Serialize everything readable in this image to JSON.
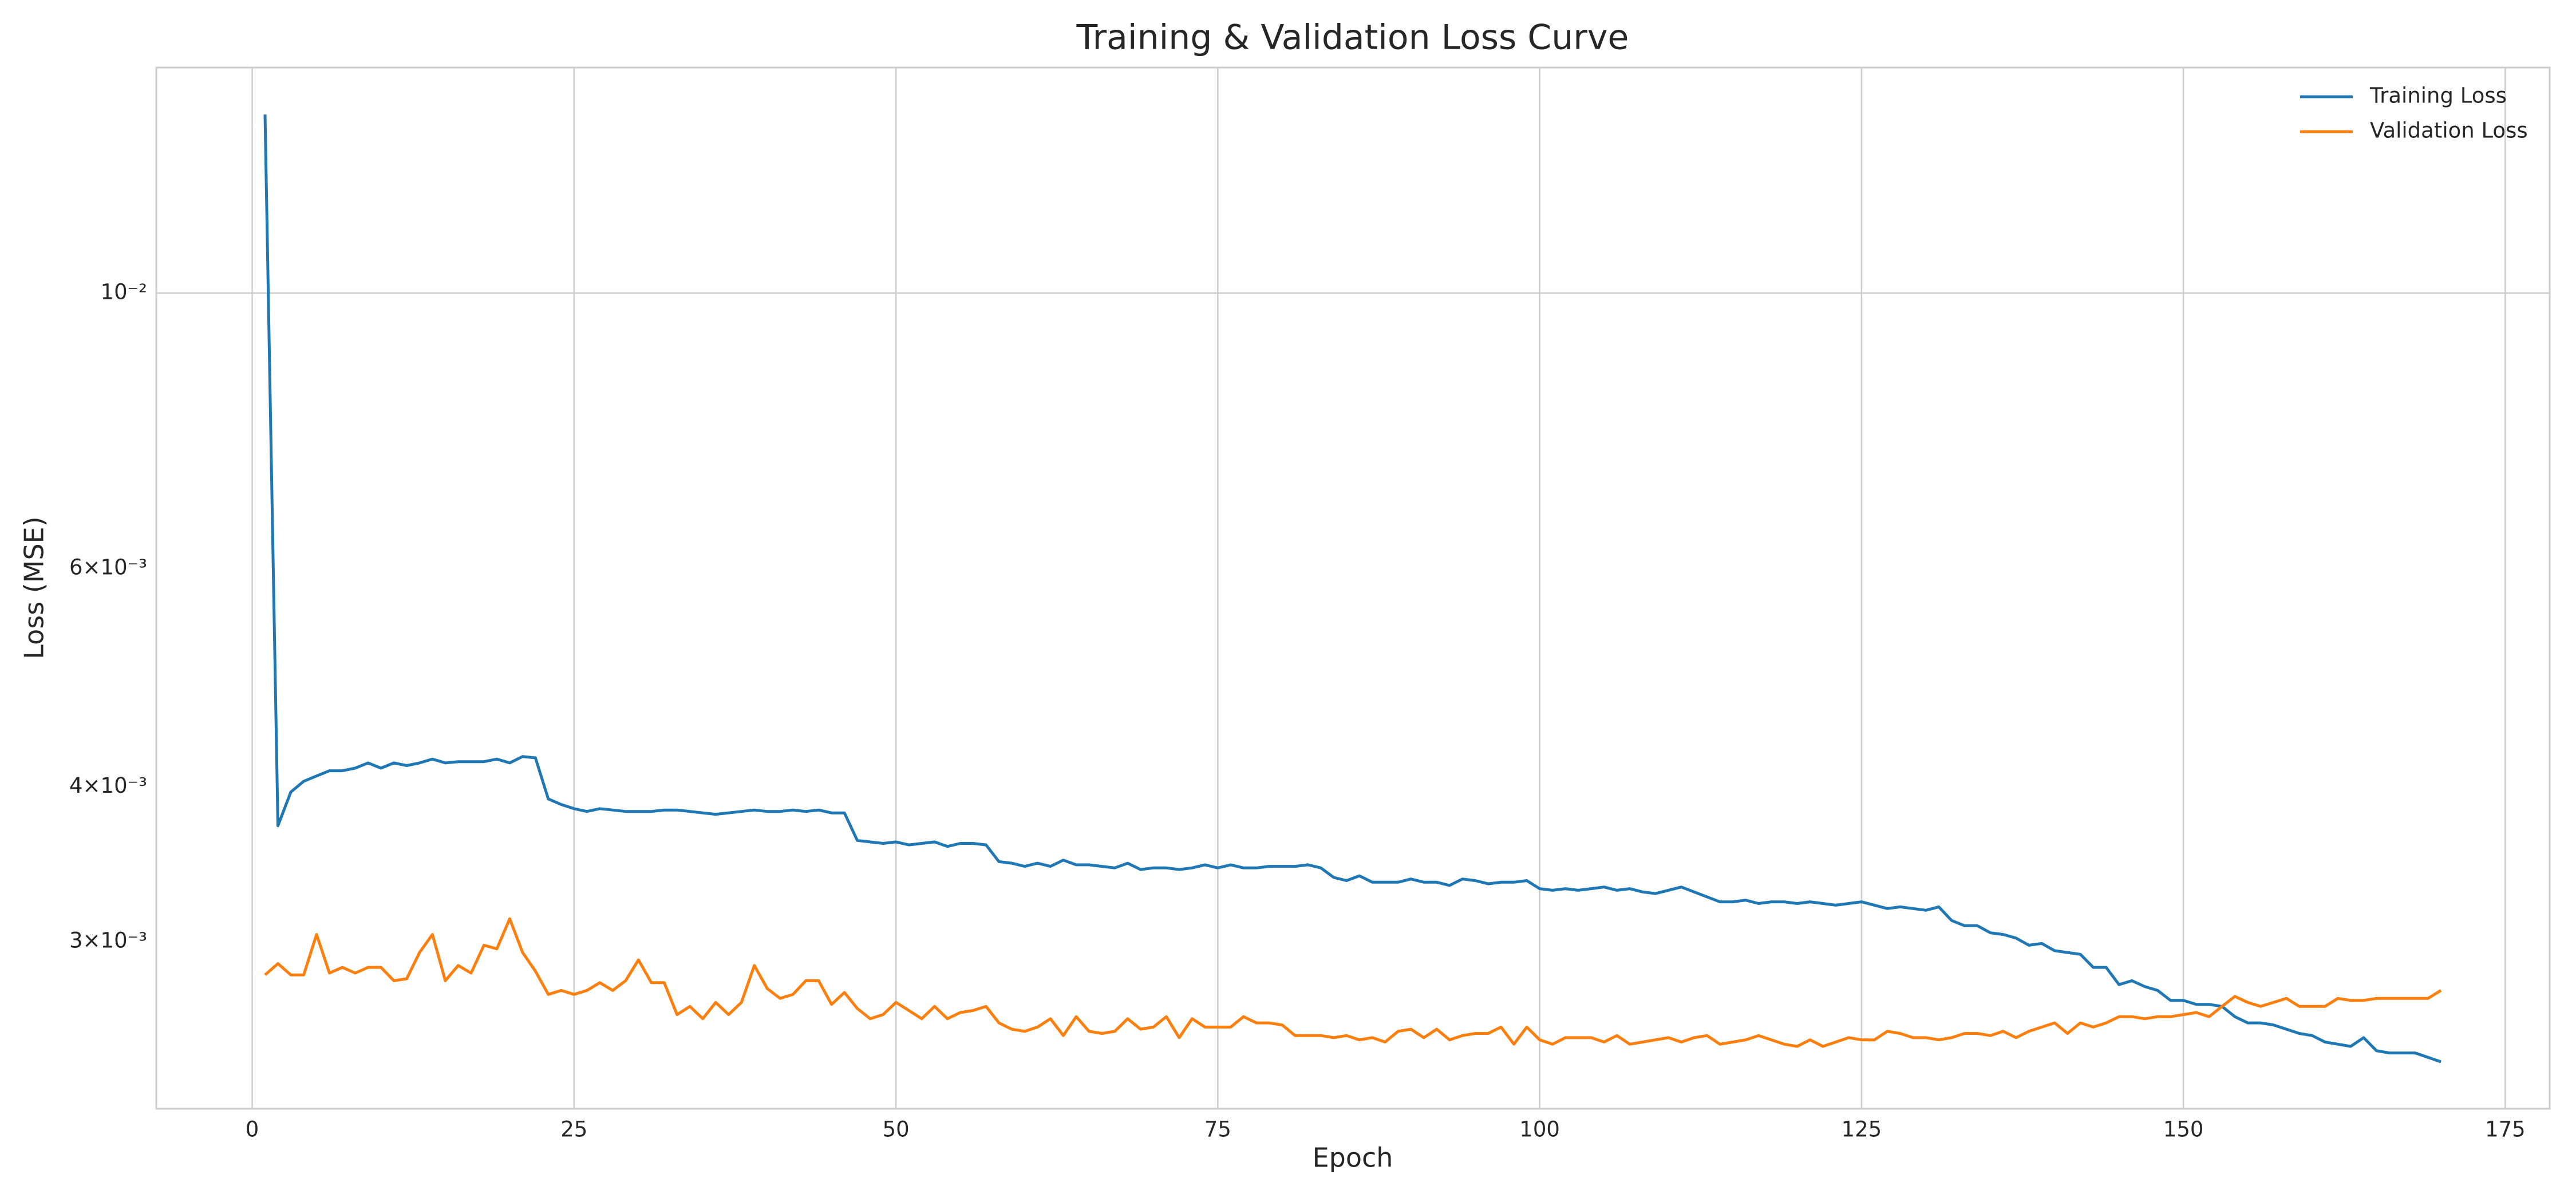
{
  "chart_data": {
    "type": "line",
    "title": "Training & Validation Loss Curve",
    "xlabel": "Epoch",
    "ylabel": "Loss (MSE)",
    "yscale": "log",
    "grid": true,
    "legend": "upper right",
    "x": [
      1,
      2,
      3,
      4,
      5,
      6,
      7,
      8,
      9,
      10,
      11,
      12,
      13,
      14,
      15,
      16,
      17,
      18,
      19,
      20,
      21,
      22,
      23,
      24,
      25,
      26,
      27,
      28,
      29,
      30,
      31,
      32,
      33,
      34,
      35,
      36,
      37,
      38,
      39,
      40,
      41,
      42,
      43,
      44,
      45,
      46,
      47,
      48,
      49,
      50,
      51,
      52,
      53,
      54,
      55,
      56,
      57,
      58,
      59,
      60,
      61,
      62,
      63,
      64,
      65,
      66,
      67,
      68,
      69,
      70,
      71,
      72,
      73,
      74,
      75,
      76,
      77,
      78,
      79,
      80,
      81,
      82,
      83,
      84,
      85,
      86,
      87,
      88,
      89,
      90,
      91,
      92,
      93,
      94,
      95,
      96,
      97,
      98,
      99,
      100,
      101,
      102,
      103,
      104,
      105,
      106,
      107,
      108,
      109,
      110,
      111,
      112,
      113,
      114,
      115,
      116,
      117,
      118,
      119,
      120,
      121,
      122,
      123,
      124,
      125,
      126,
      127,
      128,
      129,
      130,
      131,
      132,
      133,
      134,
      135,
      136,
      137,
      138,
      139,
      140,
      141,
      142,
      143,
      144,
      145,
      146,
      147,
      148,
      149,
      150,
      151,
      152,
      153,
      154,
      155,
      156,
      157,
      158,
      159,
      160,
      161,
      162,
      163,
      164,
      165,
      166,
      167,
      168,
      169,
      170
    ],
    "series": [
      {
        "name": "Training Loss",
        "color": "#1f77b4",
        "values": [
          0.01393,
          0.00372,
          0.00396,
          0.00404,
          0.00408,
          0.00412,
          0.00412,
          0.00414,
          0.00418,
          0.00414,
          0.00418,
          0.00416,
          0.00418,
          0.00421,
          0.00418,
          0.00419,
          0.00419,
          0.00419,
          0.00421,
          0.00418,
          0.00423,
          0.00422,
          0.00391,
          0.00387,
          0.00384,
          0.00382,
          0.00384,
          0.00383,
          0.00382,
          0.00382,
          0.00382,
          0.00383,
          0.00383,
          0.00382,
          0.00381,
          0.0038,
          0.00381,
          0.00382,
          0.00383,
          0.00382,
          0.00382,
          0.00383,
          0.00382,
          0.00383,
          0.00381,
          0.00381,
          0.00362,
          0.00361,
          0.0036,
          0.00361,
          0.00359,
          0.0036,
          0.00361,
          0.00358,
          0.0036,
          0.0036,
          0.00359,
          0.00348,
          0.00347,
          0.00345,
          0.00347,
          0.00345,
          0.00349,
          0.00346,
          0.00346,
          0.00345,
          0.00344,
          0.00347,
          0.00343,
          0.00344,
          0.00344,
          0.00343,
          0.00344,
          0.00346,
          0.00344,
          0.00346,
          0.00344,
          0.00344,
          0.00345,
          0.00345,
          0.00345,
          0.00346,
          0.00344,
          0.00338,
          0.00336,
          0.00339,
          0.00335,
          0.00335,
          0.00335,
          0.00337,
          0.00335,
          0.00335,
          0.00333,
          0.00337,
          0.00336,
          0.00334,
          0.00335,
          0.00335,
          0.00336,
          0.00331,
          0.0033,
          0.00331,
          0.0033,
          0.00331,
          0.00332,
          0.0033,
          0.00331,
          0.00329,
          0.00328,
          0.0033,
          0.00332,
          0.00329,
          0.00326,
          0.00323,
          0.00323,
          0.00324,
          0.00322,
          0.00323,
          0.00323,
          0.00322,
          0.00323,
          0.00322,
          0.00321,
          0.00322,
          0.00323,
          0.00321,
          0.00319,
          0.0032,
          0.00319,
          0.00318,
          0.0032,
          0.00312,
          0.00309,
          0.00309,
          0.00305,
          0.00304,
          0.00302,
          0.00298,
          0.00299,
          0.00295,
          0.00294,
          0.00293,
          0.00286,
          0.00286,
          0.00277,
          0.00279,
          0.00276,
          0.00274,
          0.00269,
          0.00269,
          0.00267,
          0.00267,
          0.00266,
          0.00261,
          0.00258,
          0.00258,
          0.00257,
          0.00255,
          0.00253,
          0.00252,
          0.00249,
          0.00248,
          0.00247,
          0.00251,
          0.00245,
          0.00244,
          0.00244,
          0.00244,
          0.00242,
          0.0024
        ]
      },
      {
        "name": "Validation Loss",
        "color": "#ff7f0e",
        "values": [
          0.00282,
          0.00288,
          0.00282,
          0.00282,
          0.00304,
          0.00283,
          0.00286,
          0.00283,
          0.00286,
          0.00286,
          0.00279,
          0.0028,
          0.00294,
          0.00304,
          0.00279,
          0.00287,
          0.00283,
          0.00298,
          0.00296,
          0.00313,
          0.00294,
          0.00284,
          0.00272,
          0.00274,
          0.00272,
          0.00274,
          0.00278,
          0.00274,
          0.00279,
          0.0029,
          0.00278,
          0.00278,
          0.00262,
          0.00266,
          0.0026,
          0.00268,
          0.00262,
          0.00268,
          0.00287,
          0.00275,
          0.0027,
          0.00272,
          0.00279,
          0.00279,
          0.00267,
          0.00273,
          0.00265,
          0.0026,
          0.00262,
          0.00268,
          0.00264,
          0.0026,
          0.00266,
          0.0026,
          0.00263,
          0.00264,
          0.00266,
          0.00258,
          0.00255,
          0.00254,
          0.00256,
          0.0026,
          0.00252,
          0.00261,
          0.00254,
          0.00253,
          0.00254,
          0.0026,
          0.00255,
          0.00256,
          0.00261,
          0.00251,
          0.0026,
          0.00256,
          0.00256,
          0.00256,
          0.00261,
          0.00258,
          0.00258,
          0.00257,
          0.00252,
          0.00252,
          0.00252,
          0.00251,
          0.00252,
          0.0025,
          0.00251,
          0.00249,
          0.00254,
          0.00255,
          0.00251,
          0.00255,
          0.0025,
          0.00252,
          0.00253,
          0.00253,
          0.00256,
          0.00248,
          0.00256,
          0.0025,
          0.00248,
          0.00251,
          0.00251,
          0.00251,
          0.00249,
          0.00252,
          0.00248,
          0.00249,
          0.0025,
          0.00251,
          0.00249,
          0.00251,
          0.00252,
          0.00248,
          0.00249,
          0.0025,
          0.00252,
          0.0025,
          0.00248,
          0.00247,
          0.0025,
          0.00247,
          0.00249,
          0.00251,
          0.0025,
          0.0025,
          0.00254,
          0.00253,
          0.00251,
          0.00251,
          0.0025,
          0.00251,
          0.00253,
          0.00253,
          0.00252,
          0.00254,
          0.00251,
          0.00254,
          0.00256,
          0.00258,
          0.00253,
          0.00258,
          0.00256,
          0.00258,
          0.00261,
          0.00261,
          0.0026,
          0.00261,
          0.00261,
          0.00262,
          0.00263,
          0.00261,
          0.00266,
          0.00271,
          0.00268,
          0.00266,
          0.00268,
          0.0027,
          0.00266,
          0.00266,
          0.00266,
          0.0027,
          0.00269,
          0.00269,
          0.0027,
          0.0027,
          0.0027,
          0.0027,
          0.0027,
          0.00274
        ]
      }
    ],
    "xlim": [
      -7.45,
      178.45
    ],
    "xticks": [
      0,
      25,
      50,
      75,
      100,
      125,
      150,
      175
    ],
    "ylim": [
      0.0022,
      0.0152
    ],
    "yticks": [
      {
        "value": 0.003,
        "label": "3×10⁻³"
      },
      {
        "value": 0.004,
        "label": "4×10⁻³"
      },
      {
        "value": 0.006,
        "label": "6×10⁻³"
      },
      {
        "value": 0.01,
        "label": "10⁻²"
      }
    ]
  }
}
